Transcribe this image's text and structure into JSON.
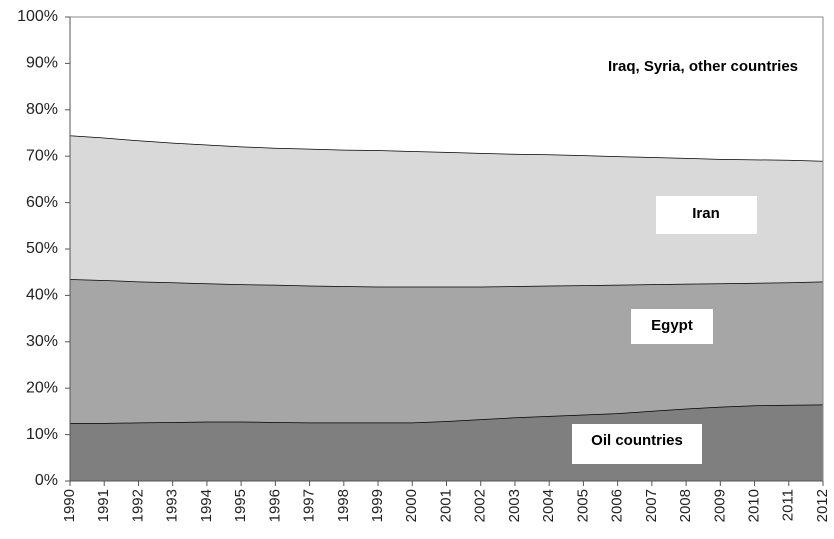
{
  "chart_data": {
    "type": "stacked-area",
    "categories": [
      "1990",
      "1991",
      "1992",
      "1993",
      "1994",
      "1995",
      "1996",
      "1997",
      "1998",
      "1999",
      "2000",
      "2001",
      "2002",
      "2003",
      "2004",
      "2005",
      "2006",
      "2007",
      "2008",
      "2009",
      "2010",
      "2011",
      "2012"
    ],
    "series": [
      {
        "name": "Oil countries",
        "color": "#7f7f7f",
        "values": [
          12.5,
          12.5,
          12.6,
          12.7,
          12.8,
          12.8,
          12.7,
          12.6,
          12.6,
          12.6,
          12.6,
          12.9,
          13.3,
          13.7,
          14.0,
          14.3,
          14.6,
          15.1,
          15.6,
          16.0,
          16.3,
          16.4,
          16.5
        ]
      },
      {
        "name": "Egypt",
        "color": "#a6a6a6",
        "values": [
          31.0,
          30.8,
          30.4,
          30.1,
          29.8,
          29.6,
          29.6,
          29.5,
          29.4,
          29.3,
          29.3,
          29.0,
          28.6,
          28.3,
          28.1,
          27.9,
          27.7,
          27.3,
          26.9,
          26.6,
          26.4,
          26.4,
          26.5
        ]
      },
      {
        "name": "Iran",
        "color": "#d9d9d9",
        "values": [
          31.0,
          30.7,
          30.4,
          30.1,
          29.9,
          29.7,
          29.5,
          29.5,
          29.4,
          29.4,
          29.2,
          29.0,
          28.8,
          28.5,
          28.3,
          28.0,
          27.7,
          27.4,
          27.1,
          26.8,
          26.6,
          26.4,
          26.0
        ]
      },
      {
        "name": "Iraq, Syria, other countries",
        "color": "#ffffff",
        "values": [
          25.5,
          26.0,
          26.6,
          27.1,
          27.5,
          27.9,
          28.2,
          28.4,
          28.6,
          28.7,
          28.9,
          29.1,
          29.3,
          29.5,
          29.6,
          29.8,
          30.0,
          30.2,
          30.4,
          30.6,
          30.7,
          30.8,
          31.0
        ]
      }
    ],
    "ylim": [
      0,
      100
    ],
    "yticks": [
      {
        "value": 0,
        "label": "0%"
      },
      {
        "value": 10,
        "label": "10%"
      },
      {
        "value": 20,
        "label": "20%"
      },
      {
        "value": 30,
        "label": "30%"
      },
      {
        "value": 40,
        "label": "40%"
      },
      {
        "value": 50,
        "label": "50%"
      },
      {
        "value": 60,
        "label": "60%"
      },
      {
        "value": 70,
        "label": "70%"
      },
      {
        "value": 80,
        "label": "80%"
      },
      {
        "value": 90,
        "label": "90%"
      },
      {
        "value": 100,
        "label": "100%"
      }
    ]
  }
}
